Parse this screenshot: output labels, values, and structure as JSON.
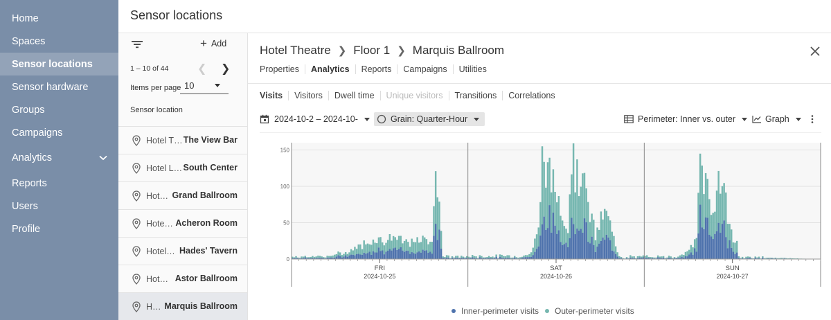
{
  "nav": {
    "items": [
      {
        "label": "Home"
      },
      {
        "label": "Spaces"
      },
      {
        "label": "Sensor locations"
      },
      {
        "label": "Sensor hardware"
      },
      {
        "label": "Groups"
      },
      {
        "label": "Campaigns"
      },
      {
        "label": "Analytics"
      },
      {
        "label": "Reports"
      },
      {
        "label": "Users"
      },
      {
        "label": "Profile"
      }
    ]
  },
  "page": {
    "title": "Sensor locations"
  },
  "list": {
    "add_label": "Add",
    "range": "1 – 10 of 44",
    "items_per_page_label": "Items per page",
    "items_per_page_value": "10",
    "column_header": "Sensor location",
    "rows": [
      {
        "venue": "Hotel Theatre",
        "location": "The View Bar"
      },
      {
        "venue": "Hotel Luxe",
        "location": "South Center"
      },
      {
        "venue": "Hotel Theatre",
        "location": "Grand Ballroom"
      },
      {
        "venue": "Hotel Theatre",
        "location": "Acheron Room"
      },
      {
        "venue": "Hotel Theatre",
        "location": "Hades' Tavern"
      },
      {
        "venue": "Hotel Theatre",
        "location": "Astor Ballroom"
      },
      {
        "venue": "Hotel Theatre",
        "location": "Marquis Ballroom"
      }
    ]
  },
  "detail": {
    "breadcrumb": [
      "Hotel Theatre",
      "Floor 1",
      "Marquis Ballroom"
    ],
    "tabs": [
      "Properties",
      "Analytics",
      "Reports",
      "Campaigns",
      "Utilities"
    ],
    "subtabs": [
      "Visits",
      "Visitors",
      "Dwell time",
      "Unique visitors",
      "Transitions",
      "Correlations"
    ],
    "date_range": "2024-10-2 – 2024-10-",
    "grain": "Grain: Quarter-Hour",
    "perimeter": "Perimeter: Inner vs. outer",
    "view": "Graph"
  },
  "colors": {
    "nav_bg": "#7a8ea8",
    "inner": "#4f73ad",
    "outer": "#76b7b0"
  },
  "chart_data": {
    "type": "bar",
    "stacked": true,
    "interval": "15 minutes",
    "ylim": [
      0,
      160
    ],
    "yticks": [
      0,
      50,
      100,
      150
    ],
    "days": [
      {
        "day": "FRI",
        "date": "2024-10-25"
      },
      {
        "day": "SAT",
        "date": "2024-10-26"
      },
      {
        "day": "SUN",
        "date": "2024-10-27"
      }
    ],
    "series": [
      {
        "name": "Inner-perimeter visits",
        "values_desc": "about 40% of each bar"
      },
      {
        "name": "Outer-perimeter visits",
        "values_desc": "remainder"
      }
    ],
    "legend": [
      "Inner-perimeter visits",
      "Outer-perimeter visits"
    ],
    "profile_points": [
      [
        0,
        3
      ],
      [
        20,
        4
      ],
      [
        30,
        10
      ],
      [
        40,
        22
      ],
      [
        45,
        28
      ],
      [
        50,
        26
      ],
      [
        55,
        30
      ],
      [
        60,
        24
      ],
      [
        65,
        22
      ],
      [
        70,
        26
      ],
      [
        76,
        28
      ],
      [
        78,
        102
      ],
      [
        80,
        96
      ],
      [
        82,
        5
      ],
      [
        84,
        3
      ],
      [
        110,
        4
      ],
      [
        125,
        4
      ],
      [
        130,
        8
      ],
      [
        134,
        40
      ],
      [
        136,
        140
      ],
      [
        138,
        128
      ],
      [
        140,
        112
      ],
      [
        144,
        92
      ],
      [
        148,
        58
      ],
      [
        150,
        40
      ],
      [
        152,
        145
      ],
      [
        156,
        100
      ],
      [
        158,
        148
      ],
      [
        160,
        80
      ],
      [
        163,
        55
      ],
      [
        165,
        30
      ],
      [
        168,
        55
      ],
      [
        170,
        62
      ],
      [
        172,
        58
      ],
      [
        174,
        34
      ],
      [
        176,
        18
      ],
      [
        178,
        6
      ],
      [
        180,
        3
      ],
      [
        196,
        3
      ],
      [
        210,
        4
      ],
      [
        215,
        10
      ],
      [
        220,
        25
      ],
      [
        222,
        140
      ],
      [
        224,
        110
      ],
      [
        226,
        102
      ],
      [
        228,
        60
      ],
      [
        230,
        80
      ],
      [
        232,
        115
      ],
      [
        234,
        100
      ],
      [
        236,
        75
      ],
      [
        238,
        50
      ],
      [
        240,
        25
      ],
      [
        242,
        22
      ],
      [
        243,
        3
      ],
      [
        287,
        0
      ]
    ]
  }
}
